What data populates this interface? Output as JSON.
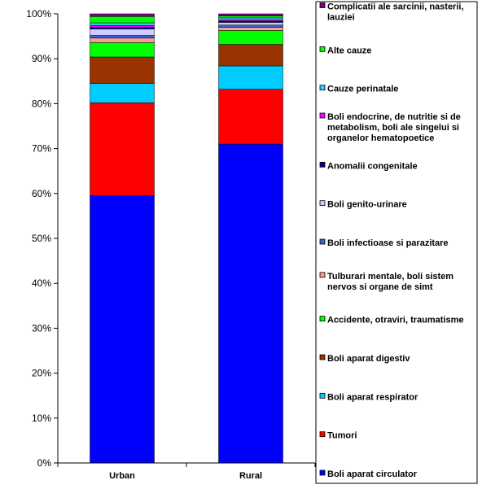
{
  "chart_data": {
    "type": "bar",
    "stacked": true,
    "percent": true,
    "categories": [
      "Urban",
      "Rural"
    ],
    "ylim": [
      0,
      100
    ],
    "yticks": [
      "0%",
      "10%",
      "20%",
      "30%",
      "40%",
      "50%",
      "60%",
      "70%",
      "80%",
      "90%",
      "100%"
    ],
    "grid": false,
    "legend_position": "right",
    "title": "",
    "xlabel": "",
    "ylabel": "",
    "series": [
      {
        "name": "Boli aparat circulator",
        "color": "#0000FF",
        "values": [
          59.5,
          71.0
        ]
      },
      {
        "name": "Tumori",
        "color": "#FF0000",
        "values": [
          20.7,
          12.2
        ]
      },
      {
        "name": "Boli aparat respirator",
        "color": "#00CCFF",
        "values": [
          4.3,
          5.2
        ]
      },
      {
        "name": "Boli aparat digestiv",
        "color": "#993300",
        "values": [
          5.9,
          4.8
        ]
      },
      {
        "name": "Accidente, otraviri, traumatisme",
        "color": "#00FF00",
        "values": [
          3.2,
          3.1
        ]
      },
      {
        "name": "Tulburari mentale, boli sistem nervos si organe de simt",
        "color": "#FF9999",
        "values": [
          1.0,
          0.7
        ]
      },
      {
        "name": "Boli infectioase si parazitare",
        "color": "#3366CC",
        "values": [
          0.6,
          0.5
        ]
      },
      {
        "name": "Boli genito-urinare",
        "color": "#CCCCFF",
        "values": [
          1.4,
          0.6
        ]
      },
      {
        "name": "Anomalii congenitale",
        "color": "#000080",
        "values": [
          0.4,
          0.3
        ]
      },
      {
        "name": "Boli endocrine, de nutritie si de metabolism, boli ale singelui si organelor hematopoetice",
        "color": "#FF00FF",
        "values": [
          0.4,
          0.2
        ]
      },
      {
        "name": "Cauze perinatale",
        "color": "#33CCFF",
        "values": [
          0.6,
          0.5
        ]
      },
      {
        "name": "Alte cauze",
        "color": "#00FF00",
        "values": [
          1.4,
          0.4
        ]
      },
      {
        "name": "Complicatii ale sarcinii, nasterii, lauziei",
        "color": "#800080",
        "values": [
          0.6,
          0.5
        ]
      }
    ],
    "legend_items": [
      {
        "lines": [
          "Complicatii ale sarcinii, nasterii,",
          "lauziei"
        ],
        "color": "#800080"
      },
      {
        "lines": [
          "Alte cauze"
        ],
        "color": "#00FF00"
      },
      {
        "lines": [
          "Cauze perinatale"
        ],
        "color": "#33CCFF"
      },
      {
        "lines": [
          "Boli endocrine, de nutritie si de",
          "metabolism, boli ale singelui si",
          "organelor hematopoetice"
        ],
        "color": "#FF00FF"
      },
      {
        "lines": [
          "Anomalii congenitale"
        ],
        "color": "#000080"
      },
      {
        "lines": [
          "Boli genito-urinare"
        ],
        "color": "#CCCCFF"
      },
      {
        "lines": [
          "Boli infectioase si parazitare"
        ],
        "color": "#3366CC"
      },
      {
        "lines": [
          "Tulburari mentale, boli sistem",
          "nervos si organe de simt"
        ],
        "color": "#FF9999"
      },
      {
        "lines": [
          "Accidente, otraviri, traumatisme"
        ],
        "color": "#00FF00"
      },
      {
        "lines": [
          "Boli aparat digestiv"
        ],
        "color": "#993300"
      },
      {
        "lines": [
          "Boli aparat respirator"
        ],
        "color": "#00CCFF"
      },
      {
        "lines": [
          "Tumori"
        ],
        "color": "#FF0000"
      },
      {
        "lines": [
          "Boli aparat circulator"
        ],
        "color": "#0000FF"
      }
    ]
  }
}
